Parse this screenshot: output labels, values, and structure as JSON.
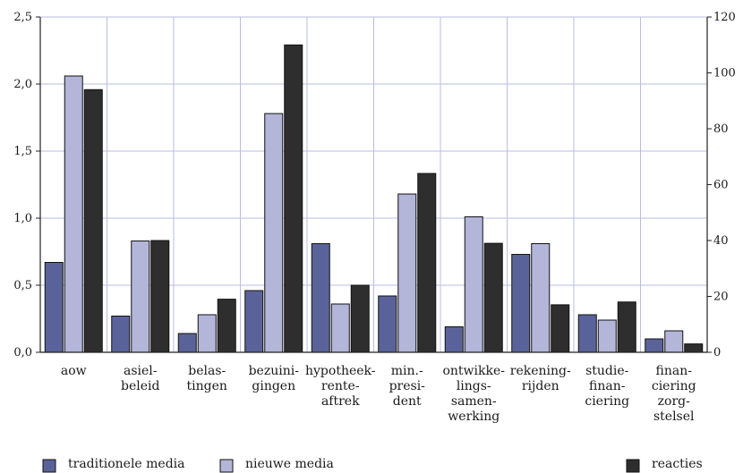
{
  "chart_data": {
    "type": "bar",
    "categories": [
      [
        "aow"
      ],
      [
        "asiel-",
        "beleid"
      ],
      [
        "belas-",
        "tingen"
      ],
      [
        "bezuini-",
        "gingen"
      ],
      [
        "hypotheek-",
        "rente-",
        "aftrek"
      ],
      [
        "min.-",
        "presi-",
        "dent"
      ],
      [
        "ontwikke-",
        "lings-",
        "samen-",
        "werking"
      ],
      [
        "rekening-",
        "rijden"
      ],
      [
        "studie-",
        "finan-",
        "ciering"
      ],
      [
        "finan-",
        "ciering",
        "zorg-",
        "stelsel"
      ]
    ],
    "series": [
      {
        "name": "traditionele media",
        "axis": "left",
        "color": "#5a6399",
        "values": [
          0.67,
          0.27,
          0.14,
          0.46,
          0.81,
          0.42,
          0.19,
          0.73,
          0.28,
          0.1
        ]
      },
      {
        "name": "nieuwe media",
        "axis": "left",
        "color": "#b3b5d9",
        "values": [
          2.06,
          0.83,
          0.28,
          1.78,
          0.36,
          1.18,
          1.01,
          0.81,
          0.24,
          0.16
        ]
      },
      {
        "name": "reacties",
        "axis": "right",
        "color": "#2e2e2e",
        "values": [
          94,
          40,
          19,
          110,
          24,
          64,
          39,
          17,
          18,
          3
        ]
      }
    ],
    "y_left": {
      "ylim": [
        0,
        2.5
      ],
      "ticks": [
        "0,0",
        "0,5",
        "1,0",
        "1,5",
        "2,0",
        "2,5"
      ]
    },
    "y_right": {
      "ylim": [
        0,
        120
      ],
      "ticks": [
        "0",
        "20",
        "40",
        "60",
        "80",
        "100",
        "120"
      ]
    },
    "grid": true,
    "legend": "bottom"
  }
}
